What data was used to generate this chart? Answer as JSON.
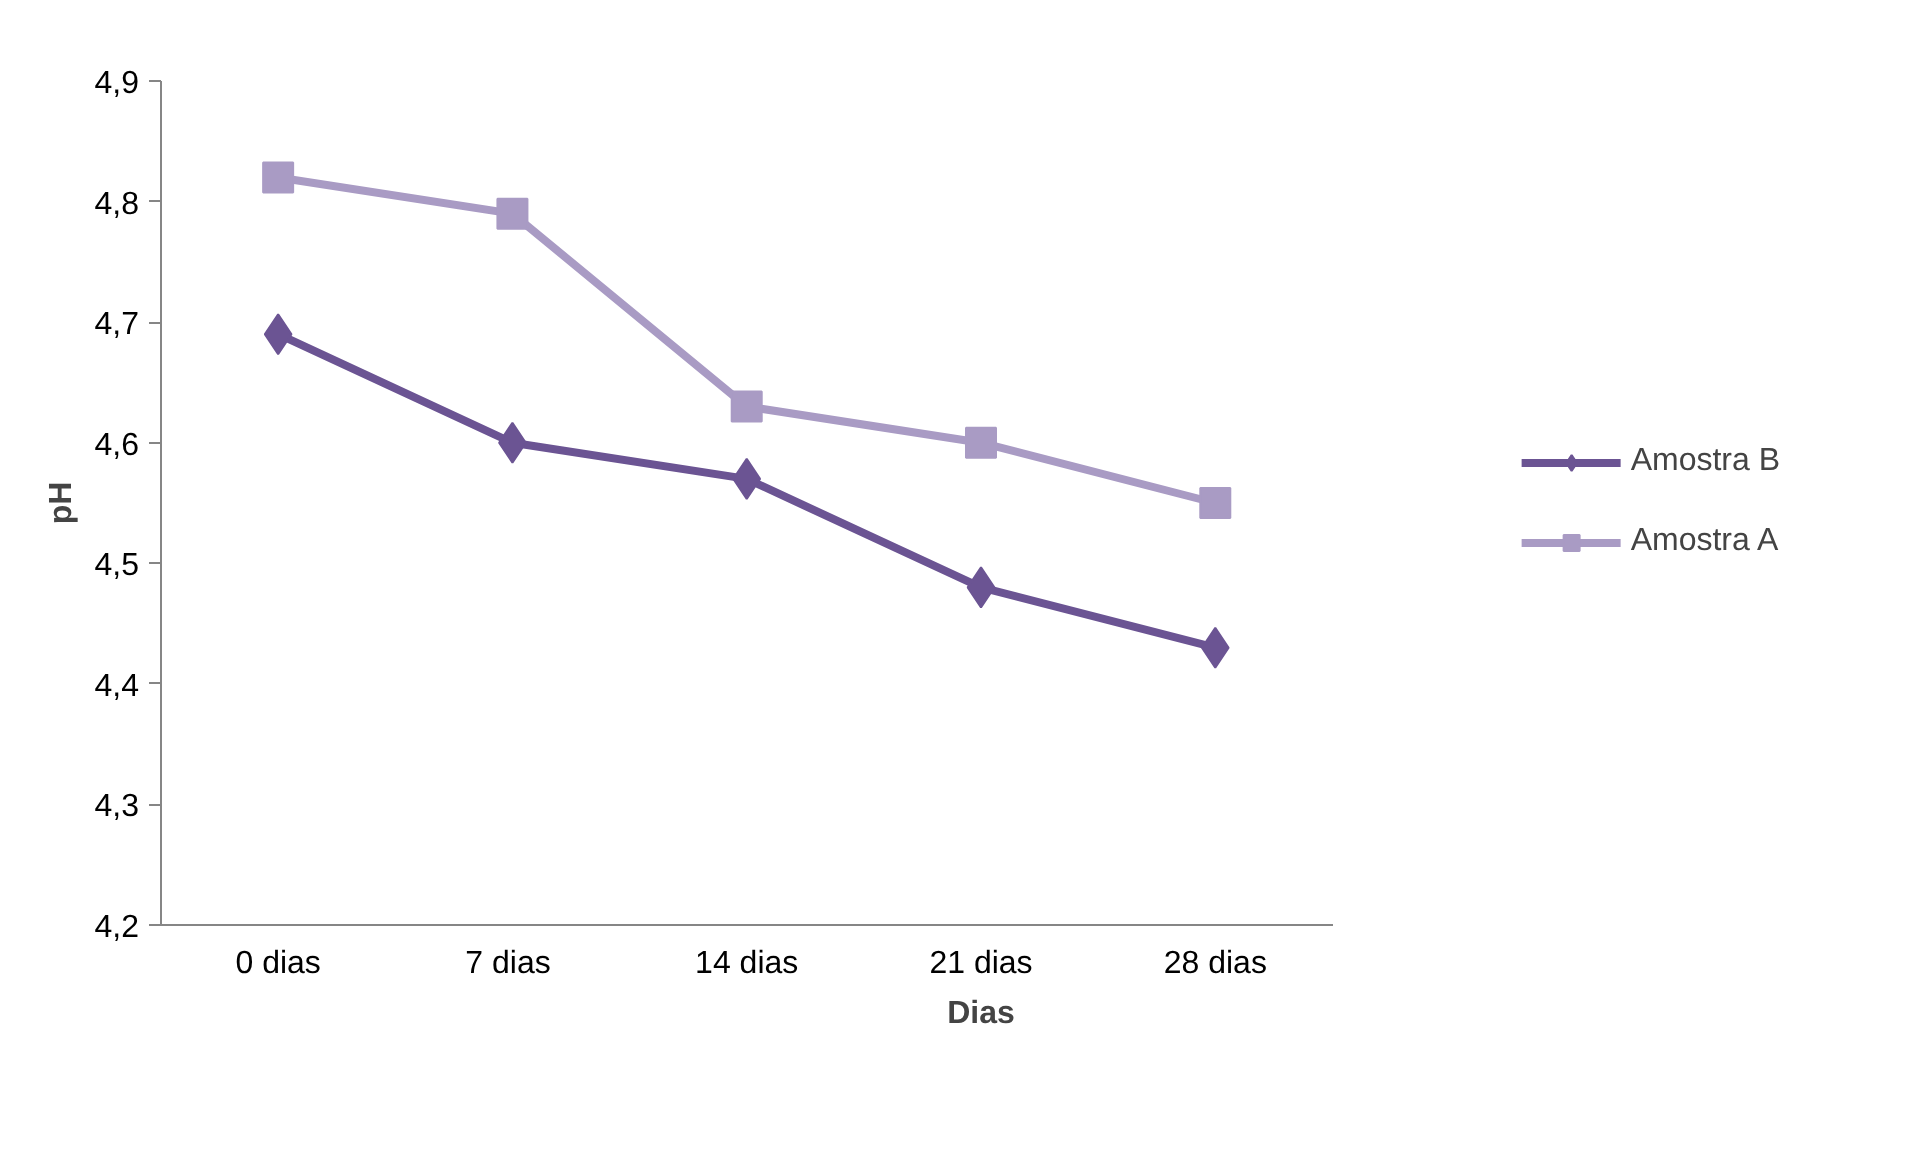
{
  "chart_data": {
    "type": "line",
    "xlabel": "Dias",
    "ylabel": "pH",
    "categories": [
      "0 dias",
      "7  dias",
      "14 dias",
      "21 dias",
      "28 dias"
    ],
    "series": [
      {
        "name": "Amostra B",
        "color": "#6b5493",
        "marker": "diamond",
        "values": [
          4.69,
          4.6,
          4.57,
          4.48,
          4.43
        ]
      },
      {
        "name": "Amostra A",
        "color": "#a99bc4",
        "marker": "square",
        "values": [
          4.82,
          4.79,
          4.63,
          4.6,
          4.55
        ]
      }
    ],
    "ylim": [
      4.2,
      4.9
    ],
    "yticks": [
      {
        "value": 4.2,
        "label": "4,2"
      },
      {
        "value": 4.3,
        "label": "4,3"
      },
      {
        "value": 4.4,
        "label": "4,4"
      },
      {
        "value": 4.5,
        "label": "4,5"
      },
      {
        "value": 4.6,
        "label": "4,6"
      },
      {
        "value": 4.7,
        "label": "4,7"
      },
      {
        "value": 4.8,
        "label": "4,8"
      },
      {
        "value": 4.9,
        "label": "4,9"
      }
    ],
    "grid": false,
    "legend": "right",
    "line_style": "solid"
  }
}
